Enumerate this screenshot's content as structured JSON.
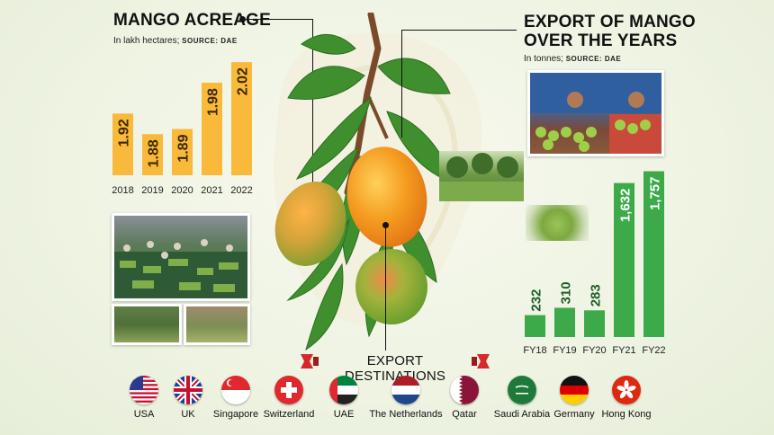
{
  "left_panel": {
    "title": "MANGO ACREAGE",
    "subtitle": "In lakh hectares;",
    "source": "SOURCE: DAE"
  },
  "right_panel": {
    "title_line1": "EXPORT OF MANGO",
    "title_line2": "OVER THE YEARS",
    "subtitle": "In tonnes;",
    "source": "SOURCE: DAE"
  },
  "colors": {
    "acreage_bar": "#f9b93a",
    "export_bar": "#3daa4a",
    "ribbon": "#d62a2a"
  },
  "chart_data": [
    {
      "type": "bar",
      "title": "MANGO ACREAGE",
      "ylabel": "In lakh hectares",
      "categories": [
        "2018",
        "2019",
        "2020",
        "2021",
        "2022"
      ],
      "values": [
        1.92,
        1.88,
        1.89,
        1.98,
        2.02
      ],
      "labels": [
        "1.92",
        "1.88",
        "1.89",
        "1.98",
        "2.02"
      ],
      "ylim": [
        1.8,
        2.05
      ],
      "grid": false
    },
    {
      "type": "bar",
      "title": "EXPORT OF MANGO OVER THE YEARS",
      "ylabel": "In tonnes",
      "categories": [
        "FY18",
        "FY19",
        "FY20",
        "FY21",
        "FY22"
      ],
      "values": [
        232,
        310,
        283,
        1632,
        1757
      ],
      "labels": [
        "232",
        "310",
        "283",
        "1,632",
        "1,757"
      ],
      "ylim": [
        0,
        1800
      ],
      "grid": false
    }
  ],
  "export_destinations": {
    "heading": "EXPORT DESTINATIONS",
    "countries": [
      {
        "name": "USA",
        "flag": "usa-flag-icon"
      },
      {
        "name": "UK",
        "flag": "uk-flag-icon"
      },
      {
        "name": "Singapore",
        "flag": "singapore-flag-icon"
      },
      {
        "name": "Switzerland",
        "flag": "switzerland-flag-icon"
      },
      {
        "name": "UAE",
        "flag": "uae-flag-icon"
      },
      {
        "name": "The Netherlands",
        "flag": "netherlands-flag-icon"
      },
      {
        "name": "Qatar",
        "flag": "qatar-flag-icon"
      },
      {
        "name": "Saudi Arabia",
        "flag": "saudi-arabia-flag-icon"
      },
      {
        "name": "Germany",
        "flag": "germany-flag-icon"
      },
      {
        "name": "Hong Kong",
        "flag": "hong-kong-flag-icon"
      }
    ]
  }
}
